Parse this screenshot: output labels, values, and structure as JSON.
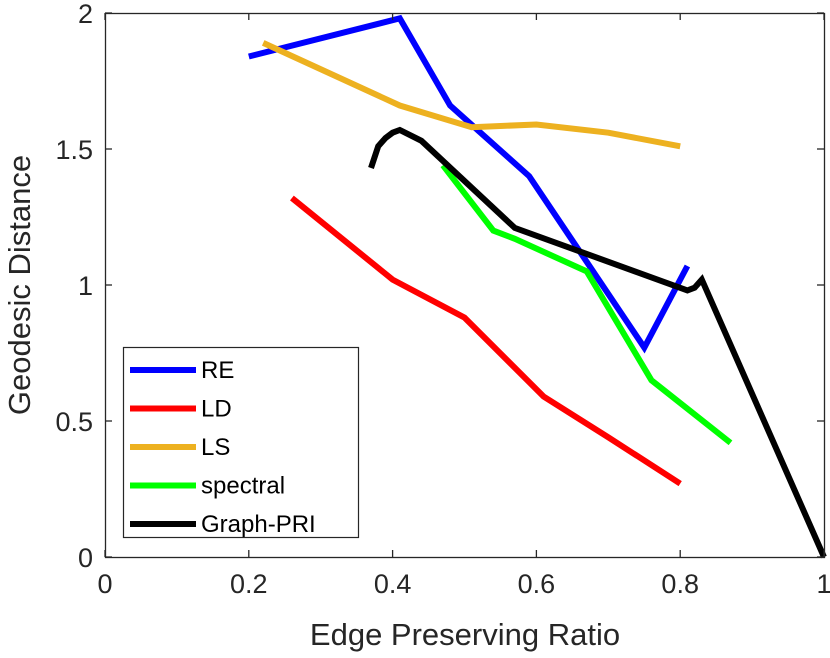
{
  "chart_data": {
    "type": "line",
    "title": "",
    "xlabel": "Edge Preserving Ratio",
    "ylabel": "Geodesic Distance",
    "xlim": [
      0,
      1
    ],
    "ylim": [
      0,
      2
    ],
    "xticks": [
      0,
      0.2,
      0.4,
      0.6,
      0.8,
      1
    ],
    "yticks": [
      0,
      0.5,
      1,
      1.5,
      2
    ],
    "xtick_labels": [
      "0",
      "0.2",
      "0.4",
      "0.6",
      "0.8",
      "1"
    ],
    "ytick_labels": [
      "0",
      "0.5",
      "1",
      "1.5",
      "2"
    ],
    "grid": false,
    "legend_position": "bottom-left",
    "series": [
      {
        "name": "RE",
        "color": "#0000ff",
        "x": [
          0.2,
          0.41,
          0.48,
          0.59,
          0.75,
          0.81
        ],
        "y": [
          1.84,
          1.98,
          1.66,
          1.4,
          0.77,
          1.07
        ]
      },
      {
        "name": "LD",
        "color": "#ff0000",
        "x": [
          0.26,
          0.4,
          0.5,
          0.61,
          0.7,
          0.8
        ],
        "y": [
          1.32,
          1.02,
          0.88,
          0.59,
          0.44,
          0.27
        ]
      },
      {
        "name": "LS",
        "color": "#edb120",
        "x": [
          0.22,
          0.41,
          0.51,
          0.6,
          0.7,
          0.8
        ],
        "y": [
          1.89,
          1.66,
          1.58,
          1.59,
          1.56,
          1.51
        ]
      },
      {
        "name": "spectral",
        "color": "#00ff00",
        "x": [
          0.47,
          0.54,
          0.57,
          0.67,
          0.76,
          0.87
        ],
        "y": [
          1.44,
          1.2,
          1.17,
          1.05,
          0.65,
          0.42
        ]
      },
      {
        "name": "Graph-PRI",
        "color": "#000000",
        "x": [
          0.37,
          0.38,
          0.39,
          0.4,
          0.41,
          0.44,
          0.57,
          0.81,
          0.82,
          0.83,
          1.0
        ],
        "y": [
          1.43,
          1.51,
          1.54,
          1.56,
          1.57,
          1.53,
          1.21,
          0.98,
          0.99,
          1.02,
          0.0
        ]
      }
    ]
  }
}
